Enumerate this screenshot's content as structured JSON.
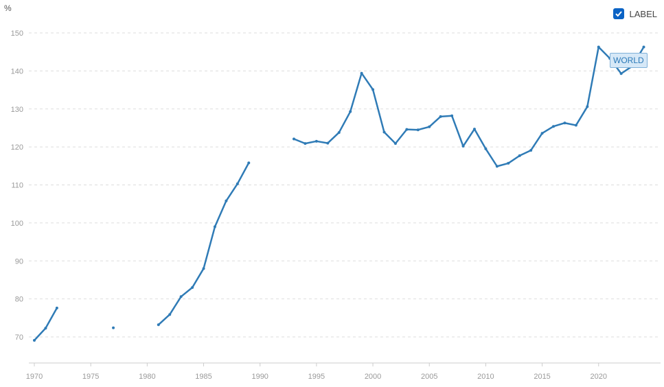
{
  "legend": {
    "label": "LABEL",
    "checked": true
  },
  "series_label": "WORLD",
  "colors": {
    "line": "#2f7bb6",
    "grid": "#dddddd",
    "axis": "#cccccc",
    "tick_text": "#999999",
    "checkbox": "#0b63c5"
  },
  "chart_data": {
    "type": "line",
    "ylabel": "%",
    "xlim": [
      1970,
      2024
    ],
    "ylim": [
      65,
      150
    ],
    "yticks": [
      70,
      80,
      90,
      100,
      110,
      120,
      130,
      140,
      150
    ],
    "xticks": [
      1970,
      1975,
      1980,
      1985,
      1990,
      1995,
      2000,
      2005,
      2010,
      2015,
      2020
    ],
    "grid": true,
    "legend_position": "top-right",
    "series": [
      {
        "name": "WORLD",
        "x": [
          1970,
          1971,
          1972,
          1973,
          1974,
          1975,
          1976,
          1977,
          1978,
          1979,
          1980,
          1981,
          1982,
          1983,
          1984,
          1985,
          1986,
          1987,
          1988,
          1989,
          1990,
          1991,
          1992,
          1993,
          1994,
          1995,
          1996,
          1997,
          1998,
          1999,
          2000,
          2001,
          2002,
          2003,
          2004,
          2005,
          2006,
          2007,
          2008,
          2009,
          2010,
          2011,
          2012,
          2013,
          2014,
          2015,
          2016,
          2017,
          2018,
          2019,
          2020,
          2021,
          2022,
          2023,
          2024
        ],
        "values": [
          69.1,
          72.3,
          77.6,
          null,
          null,
          null,
          null,
          72.4,
          null,
          null,
          null,
          73.2,
          75.9,
          80.6,
          83.0,
          88.0,
          99.0,
          105.8,
          110.3,
          115.8,
          null,
          null,
          null,
          122.1,
          120.9,
          121.5,
          121.0,
          123.8,
          129.3,
          139.4,
          135.1,
          123.9,
          120.9,
          124.6,
          124.5,
          125.3,
          128.0,
          128.2,
          120.2,
          124.7,
          119.5,
          114.9,
          115.7,
          117.7,
          119.1,
          123.6,
          125.4,
          126.3,
          125.7,
          130.6,
          146.3,
          143.3,
          139.3,
          141.3,
          146.3
        ]
      }
    ]
  }
}
